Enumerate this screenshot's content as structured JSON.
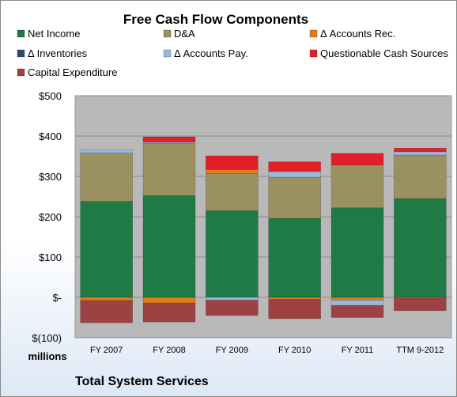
{
  "company": "Total System Services",
  "units_label": "millions",
  "chart_data": {
    "type": "bar",
    "stacked": true,
    "title": "Free Cash Flow Components",
    "categories": [
      "FY 2007",
      "FY 2008",
      "FY 2009",
      "FY 2010",
      "FY 2011",
      "TTM 9-2012"
    ],
    "ylim": [
      -100,
      500
    ],
    "yticks": [
      -100,
      0,
      100,
      200,
      300,
      400,
      500
    ],
    "ytick_labels": [
      "$(100)",
      "$-",
      "$100",
      "$200",
      "$300",
      "$400",
      "$500"
    ],
    "legend_position": "top",
    "grid": true,
    "series": [
      {
        "name": "Net Income",
        "color": "#1f7a46",
        "values": [
          238,
          252,
          215,
          196,
          222,
          245
        ]
      },
      {
        "name": "D&A",
        "color": "#9b9060",
        "values": [
          120,
          130,
          92,
          102,
          106,
          108
        ]
      },
      {
        "name": "Δ Accounts Rec.",
        "color": "#e07b1a",
        "values": [
          -8,
          -14,
          10,
          -5,
          -7,
          -2
        ]
      },
      {
        "name": "Δ Inventories",
        "color": "#2e4d6b",
        "values": [
          0,
          0,
          0,
          0,
          0,
          0
        ]
      },
      {
        "name": "Δ Accounts Pay.",
        "color": "#9ab8de",
        "values": [
          8,
          3,
          -7,
          14,
          -13,
          8
        ]
      },
      {
        "name": "Questionable Cash Sources",
        "color": "#e21e26",
        "values": [
          0,
          13,
          34,
          24,
          29,
          9
        ]
      },
      {
        "name": "Capital Expenditure",
        "color": "#9c4242",
        "values": [
          -55,
          -47,
          -38,
          -48,
          -30,
          -31
        ]
      }
    ]
  }
}
